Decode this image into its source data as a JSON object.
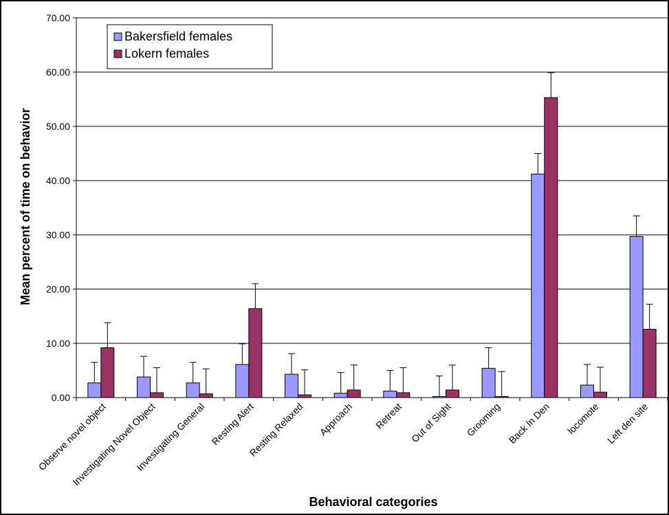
{
  "chart_data": {
    "type": "bar",
    "title": "",
    "xlabel": "Behavioral categories",
    "ylabel": "Mean percent of time on behavior",
    "ylim": [
      0,
      70
    ],
    "yticks": [
      "0.00",
      "10.00",
      "20.00",
      "30.00",
      "40.00",
      "50.00",
      "60.00",
      "70.00"
    ],
    "grid": true,
    "legend_position": "top-left",
    "categories": [
      "Observe novel object",
      "Investigating Novel Object",
      "Investigating General",
      "Resting Alert",
      "Resting Relaxed",
      "Approach",
      "Retreat",
      "Out of Sight",
      "Grooming",
      "Back In Den",
      "locomote",
      "Left den site"
    ],
    "series": [
      {
        "name": "Bakersfield females",
        "color": "#9999ff",
        "values": [
          2.7,
          3.8,
          2.7,
          6.1,
          4.3,
          0.8,
          1.2,
          0.2,
          5.4,
          41.2,
          2.3,
          29.7
        ],
        "error": [
          3.8,
          3.8,
          3.8,
          3.8,
          3.8,
          3.8,
          3.8,
          3.8,
          3.8,
          3.8,
          3.8,
          3.8
        ]
      },
      {
        "name": "Lokern females",
        "color": "#993366",
        "values": [
          9.2,
          0.9,
          0.7,
          16.4,
          0.5,
          1.4,
          0.9,
          1.4,
          0.2,
          55.3,
          1.0,
          12.6
        ],
        "error": [
          4.6,
          4.6,
          4.6,
          4.6,
          4.6,
          4.6,
          4.6,
          4.6,
          4.6,
          4.6,
          4.6,
          4.6
        ]
      }
    ]
  }
}
